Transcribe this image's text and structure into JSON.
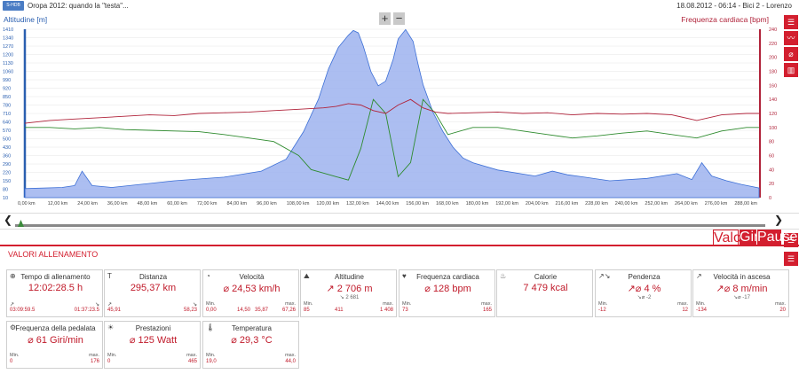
{
  "header": {
    "logo": "S-HDB",
    "title": "Oropa 2012: quando la \"testa\"...",
    "meta": "18.08.2012 - 06:14 - Bici 2 - Lorenzo"
  },
  "chart_data": {
    "type": "area",
    "left_axis_label": "Altitudine [m]",
    "right_axis_label": "Frequenza cardiaca [bpm]",
    "y_left_ticks": [
      1410,
      1340,
      1270,
      1200,
      1130,
      1060,
      990,
      920,
      850,
      780,
      710,
      640,
      570,
      500,
      430,
      360,
      290,
      220,
      150,
      80,
      10
    ],
    "y_right_ticks": [
      240,
      220,
      200,
      180,
      160,
      140,
      120,
      100,
      80,
      60,
      40,
      20,
      0
    ],
    "x_ticks": [
      "0,00 km",
      "12,00 km",
      "24,00 km",
      "36,00 km",
      "48,00 km",
      "60,00 km",
      "72,00 km",
      "84,00 km",
      "96,00 km",
      "108,00 km",
      "120,00 km",
      "132,00 km",
      "144,00 km",
      "156,00 km",
      "168,00 km",
      "180,00 km",
      "192,00 km",
      "204,00 km",
      "216,00 km",
      "228,00 km",
      "240,00 km",
      "252,00 km",
      "264,00 km",
      "276,00 km",
      "288,00 km"
    ],
    "ylim_left": [
      10,
      1410
    ],
    "ylim_right": [
      0,
      240
    ],
    "xlim": [
      0,
      295.37
    ],
    "series": [
      {
        "name": "Altitudine [m]",
        "color": "#3c6fd6",
        "x": [
          0,
          15,
          20,
          23,
          27,
          35,
          60,
          80,
          95,
          105,
          112,
          118,
          122,
          126,
          130,
          132,
          134,
          136,
          139,
          142,
          145,
          148,
          150,
          153,
          156,
          158,
          160,
          164,
          168,
          172,
          176,
          180,
          190,
          205,
          212,
          218,
          225,
          235,
          250,
          262,
          268,
          272,
          276,
          282,
          288,
          295
        ],
        "y": [
          85,
          95,
          110,
          230,
          110,
          95,
          150,
          180,
          230,
          330,
          560,
          830,
          1080,
          1260,
          1360,
          1400,
          1380,
          1270,
          1060,
          940,
          980,
          1160,
          1330,
          1408,
          1310,
          1120,
          950,
          720,
          560,
          430,
          340,
          300,
          240,
          190,
          230,
          200,
          180,
          150,
          170,
          210,
          160,
          300,
          190,
          150,
          120,
          90
        ]
      },
      {
        "name": "Frequenza cardiaca [bpm]",
        "color": "#b0233a",
        "x": [
          0,
          10,
          20,
          30,
          40,
          50,
          60,
          70,
          80,
          90,
          100,
          110,
          120,
          125,
          130,
          135,
          140,
          145,
          150,
          155,
          160,
          165,
          170,
          180,
          190,
          200,
          210,
          220,
          230,
          240,
          250,
          260,
          270,
          280,
          290,
          295
        ],
        "y": [
          106,
          110,
          112,
          114,
          116,
          118,
          117,
          120,
          121,
          122,
          124,
          126,
          128,
          130,
          134,
          132,
          124,
          120,
          132,
          140,
          128,
          122,
          120,
          121,
          122,
          120,
          121,
          118,
          120,
          119,
          120,
          118,
          110,
          118,
          120,
          120
        ]
      },
      {
        "name": "Velocità",
        "color": "#2e8b2e",
        "x": [
          0,
          10,
          20,
          30,
          40,
          50,
          60,
          70,
          80,
          90,
          100,
          110,
          115,
          120,
          125,
          130,
          135,
          140,
          145,
          150,
          155,
          160,
          165,
          170,
          180,
          190,
          200,
          210,
          220,
          230,
          240,
          250,
          260,
          270,
          280,
          290,
          295
        ],
        "y": [
          100,
          100,
          98,
          100,
          97,
          96,
          95,
          94,
          90,
          85,
          80,
          60,
          40,
          35,
          30,
          25,
          70,
          140,
          120,
          30,
          50,
          140,
          120,
          90,
          100,
          100,
          95,
          90,
          85,
          88,
          92,
          95,
          90,
          85,
          95,
          100,
          100
        ]
      }
    ]
  },
  "sidebar_icons": [
    "menu-icon",
    "graph-icon",
    "crossed-circle-icon",
    "bar-chart-icon"
  ],
  "tabs": {
    "valori": "Valori",
    "giri": "Giri",
    "pause": "Pause"
  },
  "panel_title": "VALORI ALLENAMENTO",
  "cards": [
    {
      "icon": "⊕",
      "label": "Tempo di allenamento",
      "value": "12:02:28.5 h",
      "sub": "",
      "left_icon": "↗",
      "right_icon": "↘",
      "left_val": "03:09:59.5",
      "right_val": "01:37:23.5"
    },
    {
      "icon": "T",
      "label": "Distanza",
      "value": "295,37 km",
      "sub": "",
      "left_icon": "↗",
      "right_icon": "↘",
      "left_val": "45,91",
      "right_val": "58,23"
    },
    {
      "icon": "◔",
      "label": "Velocità",
      "value": "⌀ 24,53 km/h",
      "sub": "",
      "min_label": "Min.",
      "max_label": "max.",
      "min": "0,00",
      "max": "67,26",
      "mid1": "14,50",
      "mid2": "35,87"
    },
    {
      "icon": "⛰",
      "label": "Altitudine",
      "value": "↗ 2 706 m",
      "sub": "↘ 2 681",
      "min_label": "Min.",
      "max_label": "max.",
      "min": "85",
      "max": "1 408",
      "mid1": "411"
    },
    {
      "icon": "♥",
      "label": "Frequenza cardiaca",
      "value": "⌀ 128 bpm",
      "sub": "",
      "min_label": "Min.",
      "max_label": "max.",
      "min": "73",
      "max": "165"
    },
    {
      "icon": "♨",
      "label": "Calorie",
      "value": "7 479 kcal",
      "sub": ""
    },
    {
      "icon": "↗↘",
      "label": "Pendenza",
      "value": "↗⌀ 4 %",
      "sub": "↘⌀ -2",
      "min_label": "Min.",
      "max_label": "max.",
      "min": "-12",
      "max": "12"
    },
    {
      "icon": "↗",
      "label": "Velocità in ascesa",
      "value": "↗⌀ 8 m/min",
      "sub": "↘⌀ -17",
      "min_label": "Min.",
      "max_label": "max.",
      "min": "-134",
      "max": "20"
    },
    {
      "icon": "⚙",
      "label": "Frequenza della pedalata",
      "value": "⌀ 61 Giri/min",
      "sub": "",
      "min_label": "Min.",
      "max_label": "max.",
      "min": "0",
      "max": "176"
    },
    {
      "icon": "☀",
      "label": "Prestazioni",
      "value": "⌀ 125 Watt",
      "sub": "",
      "min_label": "Min.",
      "max_label": "max.",
      "min": "0",
      "max": "465"
    },
    {
      "icon": "🌡",
      "label": "Temperatura",
      "value": "⌀ 29,3 °C",
      "sub": "",
      "min_label": "Min.",
      "max_label": "max.",
      "min": "19,0",
      "max": "44,0"
    }
  ]
}
